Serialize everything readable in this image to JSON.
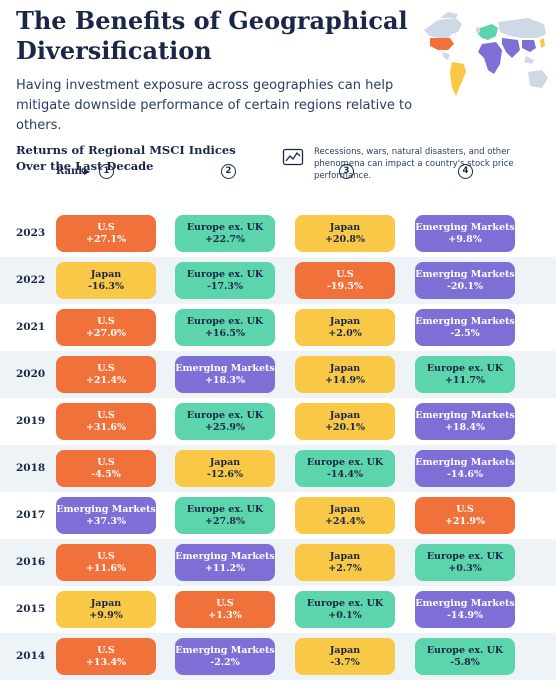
{
  "title": "The Benefits of Geographical Diversification",
  "subtitle": "Having investment exposure across geographies can help mitigate downside performance of certain regions relative to others.",
  "chart_label": "Returns of Regional MSCI Indices Over the Last Decade",
  "note": "Recessions, wars, natural disasters, and other phenomena can impact a country's stock price performance.",
  "rank_label": "Rank",
  "ranks": [
    "1",
    "2",
    "3",
    "4"
  ],
  "colors": {
    "U.S": "#f07139",
    "Japan": "#f8c846",
    "Europe ex. UK": "#5cd5ac",
    "Emerging Markets": "#7d6fd6"
  },
  "chart_data": {
    "type": "table",
    "title": "The Benefits of Geographical Diversification",
    "columns": [
      "1",
      "2",
      "3",
      "4"
    ],
    "rows": [
      {
        "year": "2023",
        "cells": [
          {
            "region": "U.S",
            "value": "+27.1%"
          },
          {
            "region": "Europe ex. UK",
            "value": "+22.7%"
          },
          {
            "region": "Japan",
            "value": "+20.8%"
          },
          {
            "region": "Emerging Markets",
            "value": "+9.8%"
          }
        ]
      },
      {
        "year": "2022",
        "cells": [
          {
            "region": "Japan",
            "value": "-16.3%"
          },
          {
            "region": "Europe ex. UK",
            "value": "-17.3%"
          },
          {
            "region": "U.S",
            "value": "-19.5%"
          },
          {
            "region": "Emerging Markets",
            "value": "-20.1%"
          }
        ]
      },
      {
        "year": "2021",
        "cells": [
          {
            "region": "U.S",
            "value": "+27.0%"
          },
          {
            "region": "Europe ex. UK",
            "value": "+16.5%"
          },
          {
            "region": "Japan",
            "value": "+2.0%"
          },
          {
            "region": "Emerging Markets",
            "value": "-2.5%"
          }
        ]
      },
      {
        "year": "2020",
        "cells": [
          {
            "region": "U.S",
            "value": "+21.4%"
          },
          {
            "region": "Emerging Markets",
            "value": "+18.3%"
          },
          {
            "region": "Japan",
            "value": "+14.9%"
          },
          {
            "region": "Europe ex. UK",
            "value": "+11.7%"
          }
        ]
      },
      {
        "year": "2019",
        "cells": [
          {
            "region": "U.S",
            "value": "+31.6%"
          },
          {
            "region": "Europe ex. UK",
            "value": "+25.9%"
          },
          {
            "region": "Japan",
            "value": "+20.1%"
          },
          {
            "region": "Emerging Markets",
            "value": "+18.4%"
          }
        ]
      },
      {
        "year": "2018",
        "cells": [
          {
            "region": "U.S",
            "value": "-4.5%"
          },
          {
            "region": "Japan",
            "value": "-12.6%"
          },
          {
            "region": "Europe ex. UK",
            "value": "-14.4%"
          },
          {
            "region": "Emerging Markets",
            "value": "-14.6%"
          }
        ]
      },
      {
        "year": "2017",
        "cells": [
          {
            "region": "Emerging Markets",
            "value": "+37.3%"
          },
          {
            "region": "Europe ex. UK",
            "value": "+27.8%"
          },
          {
            "region": "Japan",
            "value": "+24.4%"
          },
          {
            "region": "U.S",
            "value": "+21.9%"
          }
        ]
      },
      {
        "year": "2016",
        "cells": [
          {
            "region": "U.S",
            "value": "+11.6%"
          },
          {
            "region": "Emerging Markets",
            "value": "+11.2%"
          },
          {
            "region": "Japan",
            "value": "+2.7%"
          },
          {
            "region": "Europe ex. UK",
            "value": "+0.3%"
          }
        ]
      },
      {
        "year": "2015",
        "cells": [
          {
            "region": "Japan",
            "value": "+9.9%"
          },
          {
            "region": "U.S",
            "value": "+1.3%"
          },
          {
            "region": "Europe ex. UK",
            "value": "+0.1%"
          },
          {
            "region": "Emerging Markets",
            "value": "-14.9%"
          }
        ]
      },
      {
        "year": "2014",
        "cells": [
          {
            "region": "U.S",
            "value": "+13.4%"
          },
          {
            "region": "Emerging Markets",
            "value": "-2.2%"
          },
          {
            "region": "Japan",
            "value": "-3.7%"
          },
          {
            "region": "Europe ex. UK",
            "value": "-5.8%"
          }
        ]
      }
    ]
  }
}
